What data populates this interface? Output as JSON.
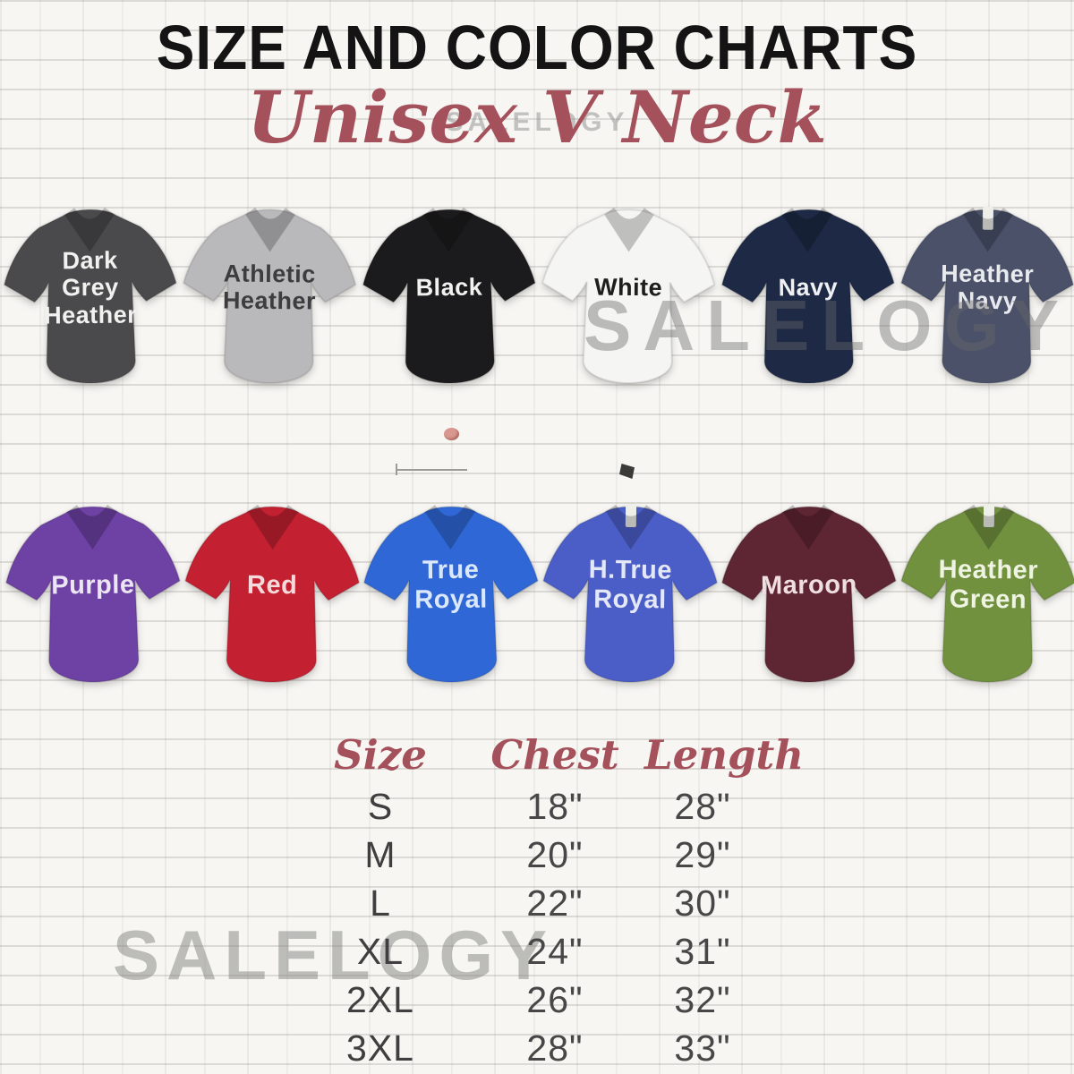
{
  "title": "SIZE AND COLOR CHARTS",
  "subtitle": "Unisex V Neck",
  "brand_watermark": "SALELOGY",
  "accent_colors": {
    "title_text": "#141414",
    "subtitle_text": "#a4515b",
    "table_header_text": "#a4515b",
    "table_value_text": "#474747",
    "watermark_gray": "#8e8e8c",
    "wall_background": "#f7f6f3"
  },
  "shirt_rows": [
    {
      "shirts": [
        {
          "name": "dark-grey-heather",
          "label": "Dark\nGrey\nHeather",
          "color": "#4a4a4d",
          "text_color": "#f1f1ef",
          "tag": false
        },
        {
          "name": "athletic-heather",
          "label": "Athletic\nHeather",
          "color": "#b9b9bb",
          "text_color": "#3d3d40",
          "tag": false
        },
        {
          "name": "black",
          "label": "Black",
          "color": "#1b1b1d",
          "text_color": "#f1f1ef",
          "tag": false
        },
        {
          "name": "white",
          "label": "White",
          "color": "#f5f5f3",
          "text_color": "#1e1e1e",
          "tag": false
        },
        {
          "name": "navy",
          "label": "Navy",
          "color": "#1d2945",
          "text_color": "#eef0f2",
          "tag": false
        },
        {
          "name": "heather-navy",
          "label": "Heather\nNavy",
          "color": "#4a5169",
          "text_color": "#e8eaee",
          "tag": true
        }
      ]
    },
    {
      "shirts": [
        {
          "name": "purple",
          "label": "Purple",
          "color": "#6e41a4",
          "text_color": "#ece6f4",
          "tag": false
        },
        {
          "name": "red",
          "label": "Red",
          "color": "#c32031",
          "text_color": "#f6d9da",
          "tag": false
        },
        {
          "name": "true-royal",
          "label": "True\nRoyal",
          "color": "#2f68d6",
          "text_color": "#dbe8fb",
          "tag": false
        },
        {
          "name": "h-true-royal",
          "label": "H.True\nRoyal",
          "color": "#4b5ec8",
          "text_color": "#e4e7f6",
          "tag": true
        },
        {
          "name": "maroon",
          "label": "Maroon",
          "color": "#5e2533",
          "text_color": "#f0dfe2",
          "tag": false
        },
        {
          "name": "heather-green",
          "label": "Heather\nGreen",
          "color": "#71913f",
          "text_color": "#eef3e2",
          "tag": true
        }
      ]
    }
  ],
  "size_chart": {
    "headers": [
      "Size",
      "Chest",
      "Length"
    ],
    "rows": [
      [
        "S",
        "18\"",
        "28\""
      ],
      [
        "M",
        "20\"",
        "29\""
      ],
      [
        "L",
        "22\"",
        "30\""
      ],
      [
        "XL",
        "24\"",
        "31\""
      ],
      [
        "2XL",
        "26\"",
        "32\""
      ],
      [
        "3XL",
        "28\"",
        "33\""
      ]
    ]
  },
  "chart_data": {
    "type": "table",
    "title": "Unisex V Neck Size Chart",
    "columns": [
      "Size",
      "Chest",
      "Length"
    ],
    "rows": [
      [
        "S",
        "18\"",
        "28\""
      ],
      [
        "M",
        "20\"",
        "29\""
      ],
      [
        "L",
        "22\"",
        "30\""
      ],
      [
        "XL",
        "24\"",
        "31\""
      ],
      [
        "2XL",
        "26\"",
        "32\""
      ],
      [
        "3XL",
        "28\"",
        "33\""
      ]
    ],
    "color_options": [
      "Dark Grey Heather",
      "Athletic Heather",
      "Black",
      "White",
      "Navy",
      "Heather Navy",
      "Purple",
      "Red",
      "True Royal",
      "H.True Royal",
      "Maroon",
      "Heather Green"
    ]
  }
}
